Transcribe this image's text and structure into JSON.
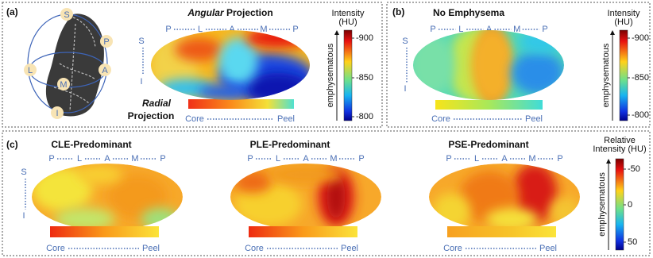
{
  "panel_a": {
    "label": "(a)",
    "title_italic": "Angular",
    "title_rest": "Projection",
    "lung_labels": [
      "S",
      "P",
      "L",
      "A",
      "M",
      "I"
    ],
    "angular_axis": [
      "P",
      "L",
      "A",
      "M",
      "P"
    ],
    "vertical_axis": [
      "S",
      "I"
    ],
    "radial_italic": "Radial",
    "radial_rest": "Projection",
    "radial_axis": [
      "Core",
      "Peel"
    ],
    "colorbar": {
      "title": [
        "Intensity",
        "(HU)"
      ],
      "ticks": [
        "-900",
        "-850",
        "-800"
      ],
      "arrow_label": "emphysematous"
    }
  },
  "panel_b": {
    "label": "(b)",
    "title": "No Emphysema",
    "angular_axis": [
      "P",
      "L",
      "A",
      "M",
      "P"
    ],
    "vertical_axis": [
      "S",
      "I"
    ],
    "radial_axis": [
      "Core",
      "Peel"
    ],
    "colorbar": {
      "title": [
        "Intensity",
        "(HU)"
      ],
      "ticks": [
        "-900",
        "-850",
        "-800"
      ],
      "arrow_label": "emphysematous"
    }
  },
  "panel_c": {
    "label": "(c)",
    "vertical_axis": [
      "S",
      "I"
    ],
    "maps": [
      {
        "title": "CLE-Predominant",
        "angular_axis": [
          "P",
          "L",
          "A",
          "M",
          "P"
        ],
        "radial_axis": [
          "Core",
          "Peel"
        ]
      },
      {
        "title": "PLE-Predominant",
        "angular_axis": [
          "P",
          "L",
          "A",
          "M",
          "P"
        ],
        "radial_axis": [
          "Core",
          "Peel"
        ]
      },
      {
        "title": "PSE-Predominant",
        "angular_axis": [
          "P",
          "L",
          "A",
          "M",
          "P"
        ],
        "radial_axis": [
          "Core",
          "Peel"
        ]
      }
    ],
    "colorbar": {
      "title": [
        "Relative",
        "Intensity (HU)"
      ],
      "ticks": [
        "-50",
        "0",
        "50"
      ],
      "arrow_label": "emphysematous"
    }
  }
}
